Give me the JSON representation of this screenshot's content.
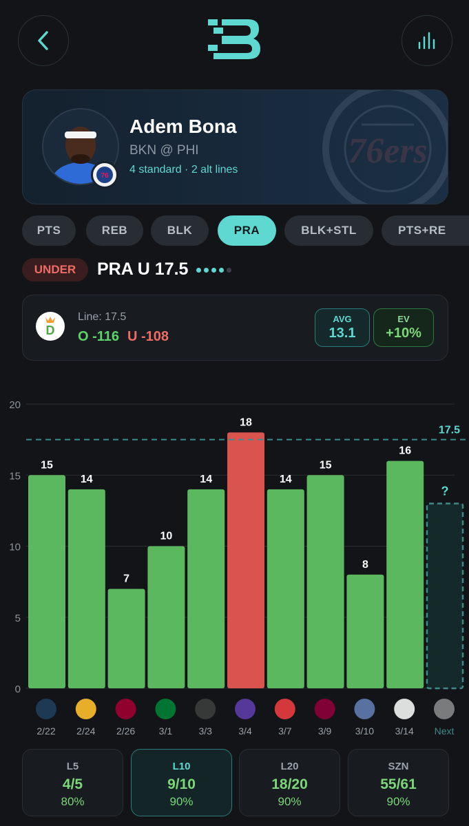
{
  "header": {
    "back_icon": "chevron-left-icon",
    "logo_icon": "brand-b-logo-icon",
    "stats_icon": "bar-chart-icon",
    "accent": "#5ed8d0"
  },
  "player": {
    "name": "Adem Bona",
    "matchup": "BKN @ PHI",
    "lines_summary": "4 standard · 2 alt lines",
    "team_badge_icon": "76ers-logo-icon",
    "watermark_icon": "76ers-watermark-icon"
  },
  "tabs": [
    {
      "label": "PTS",
      "active": false
    },
    {
      "label": "REB",
      "active": false
    },
    {
      "label": "BLK",
      "active": false
    },
    {
      "label": "PRA",
      "active": true
    },
    {
      "label": "BLK+STL",
      "active": false
    },
    {
      "label": "PTS+RE",
      "active": false
    }
  ],
  "prop": {
    "side": "UNDER",
    "title": "PRA U 17.5",
    "pager_total": 5,
    "pager_active": 4
  },
  "odds": {
    "book_icon": "draftkings-logo-icon",
    "line_label": "Line: 17.5",
    "over": "O -116",
    "under": "U -108",
    "avg_label": "AVG",
    "avg_value": "13.1",
    "ev_label": "EV",
    "ev_value": "+10%"
  },
  "chart_data": {
    "type": "bar",
    "categories": [
      "2/22",
      "2/24",
      "2/26",
      "3/1",
      "3/3",
      "3/4",
      "3/7",
      "3/9",
      "3/10",
      "3/14",
      "Next"
    ],
    "values": [
      15,
      14,
      7,
      10,
      14,
      18,
      14,
      15,
      8,
      16,
      null
    ],
    "opponents": [
      "timberwolves-logo-icon",
      "pacers-logo-icon",
      "heat-logo-icon",
      "celtics-logo-icon",
      "spurs-logo-icon",
      "jazz-logo-icon",
      "hawks-logo-icon",
      "cavaliers-logo-icon",
      "grizzlies-logo-icon",
      "nets-logo-icon",
      "nets-logo-icon"
    ],
    "next_label": "?",
    "line": 17.5,
    "line_label": "17.5",
    "yticks": [
      0,
      5,
      10,
      15,
      20
    ],
    "ylim": [
      0,
      20
    ],
    "grid": true,
    "colors": {
      "under": "#5cb85f",
      "over": "#d9534f",
      "line": "#3a8e92",
      "next": "#3f8a88"
    }
  },
  "summary": [
    {
      "label": "L5",
      "fraction": "4/5",
      "percent": "80%",
      "active": false
    },
    {
      "label": "L10",
      "fraction": "9/10",
      "percent": "90%",
      "active": true
    },
    {
      "label": "L20",
      "fraction": "18/20",
      "percent": "90%",
      "active": false
    },
    {
      "label": "SZN",
      "fraction": "55/61",
      "percent": "90%",
      "active": false
    }
  ]
}
